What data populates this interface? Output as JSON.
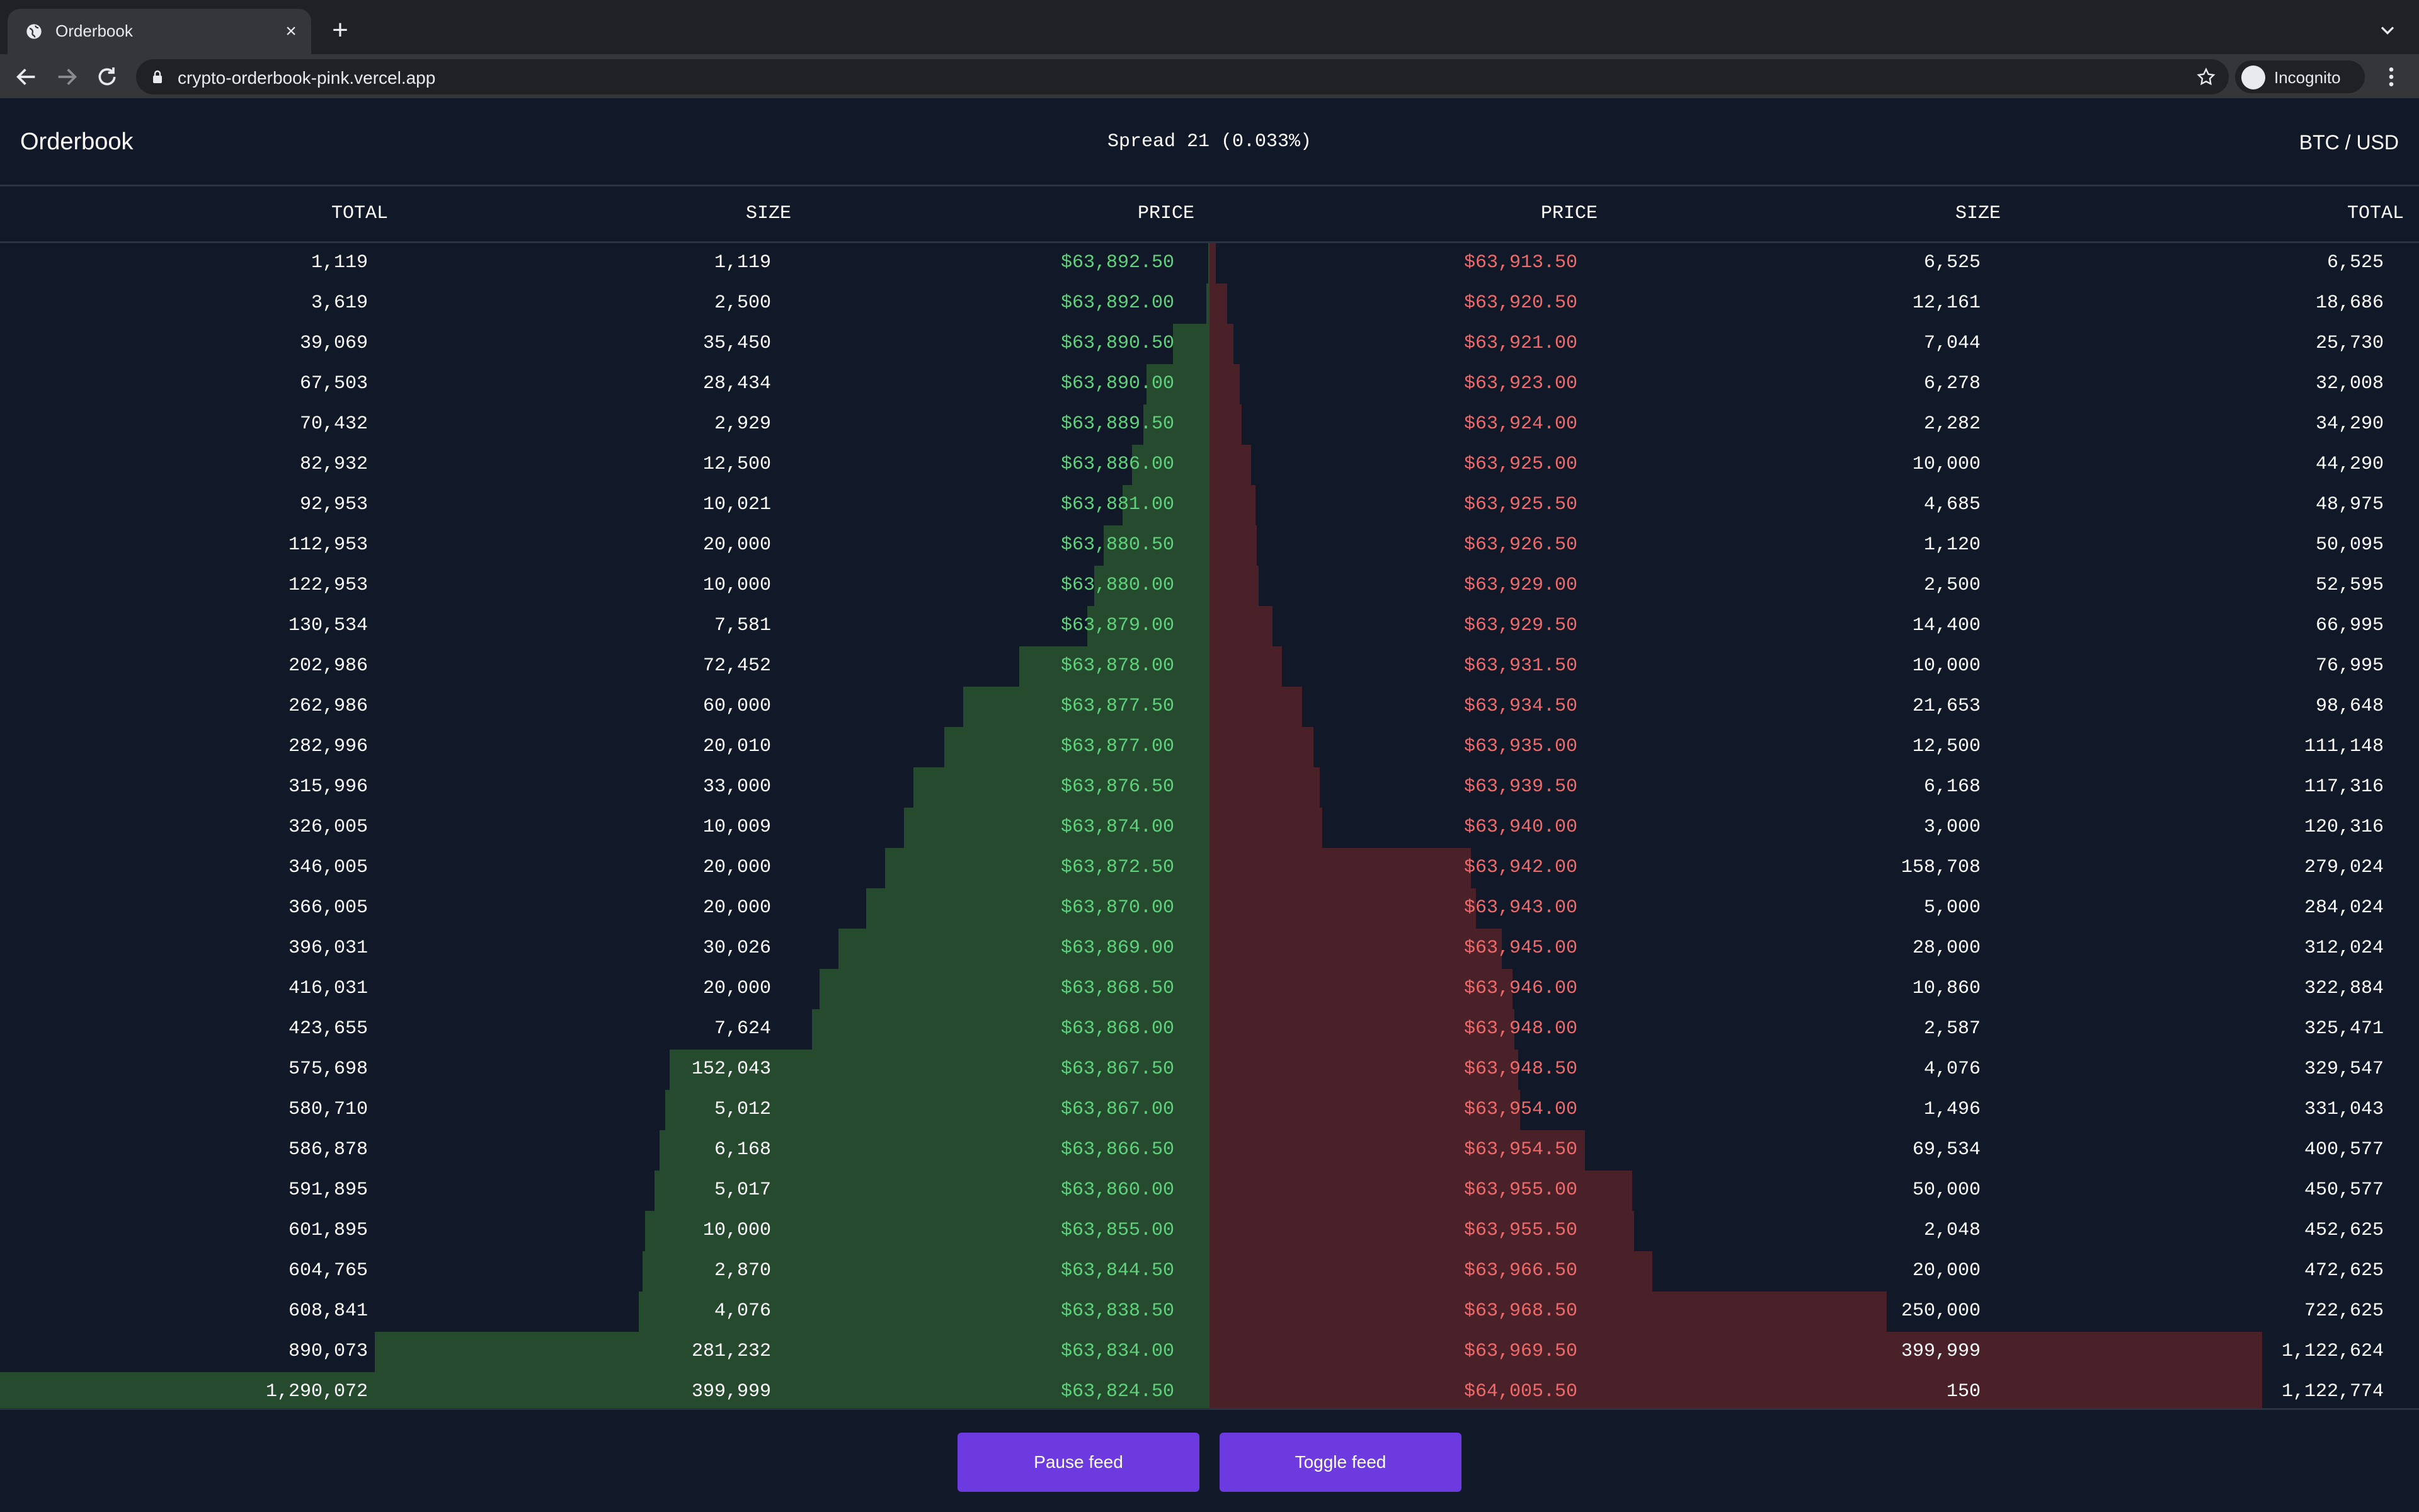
{
  "browser": {
    "tab_title": "Orderbook",
    "url": "crypto-orderbook-pink.vercel.app",
    "profile_label": "Incognito"
  },
  "header": {
    "title": "Orderbook",
    "spread": "Spread 21 (0.033%)",
    "pair": "BTC / USD"
  },
  "columns": {
    "bids": [
      "TOTAL",
      "SIZE",
      "PRICE"
    ],
    "asks": [
      "PRICE",
      "SIZE",
      "TOTAL"
    ]
  },
  "depth_max": 1290072,
  "bids": [
    {
      "total": "1,119",
      "size": "1,119",
      "price": "$63,892.50",
      "t": 1119
    },
    {
      "total": "3,619",
      "size": "2,500",
      "price": "$63,892.00",
      "t": 3619
    },
    {
      "total": "39,069",
      "size": "35,450",
      "price": "$63,890.50",
      "t": 39069
    },
    {
      "total": "67,503",
      "size": "28,434",
      "price": "$63,890.00",
      "t": 67503
    },
    {
      "total": "70,432",
      "size": "2,929",
      "price": "$63,889.50",
      "t": 70432
    },
    {
      "total": "82,932",
      "size": "12,500",
      "price": "$63,886.00",
      "t": 82932
    },
    {
      "total": "92,953",
      "size": "10,021",
      "price": "$63,881.00",
      "t": 92953
    },
    {
      "total": "112,953",
      "size": "20,000",
      "price": "$63,880.50",
      "t": 112953
    },
    {
      "total": "122,953",
      "size": "10,000",
      "price": "$63,880.00",
      "t": 122953
    },
    {
      "total": "130,534",
      "size": "7,581",
      "price": "$63,879.00",
      "t": 130534
    },
    {
      "total": "202,986",
      "size": "72,452",
      "price": "$63,878.00",
      "t": 202986
    },
    {
      "total": "262,986",
      "size": "60,000",
      "price": "$63,877.50",
      "t": 262986
    },
    {
      "total": "282,996",
      "size": "20,010",
      "price": "$63,877.00",
      "t": 282996
    },
    {
      "total": "315,996",
      "size": "33,000",
      "price": "$63,876.50",
      "t": 315996
    },
    {
      "total": "326,005",
      "size": "10,009",
      "price": "$63,874.00",
      "t": 326005
    },
    {
      "total": "346,005",
      "size": "20,000",
      "price": "$63,872.50",
      "t": 346005
    },
    {
      "total": "366,005",
      "size": "20,000",
      "price": "$63,870.00",
      "t": 366005
    },
    {
      "total": "396,031",
      "size": "30,026",
      "price": "$63,869.00",
      "t": 396031
    },
    {
      "total": "416,031",
      "size": "20,000",
      "price": "$63,868.50",
      "t": 416031
    },
    {
      "total": "423,655",
      "size": "7,624",
      "price": "$63,868.00",
      "t": 423655
    },
    {
      "total": "575,698",
      "size": "152,043",
      "price": "$63,867.50",
      "t": 575698
    },
    {
      "total": "580,710",
      "size": "5,012",
      "price": "$63,867.00",
      "t": 580710
    },
    {
      "total": "586,878",
      "size": "6,168",
      "price": "$63,866.50",
      "t": 586878
    },
    {
      "total": "591,895",
      "size": "5,017",
      "price": "$63,860.00",
      "t": 591895
    },
    {
      "total": "601,895",
      "size": "10,000",
      "price": "$63,855.00",
      "t": 601895
    },
    {
      "total": "604,765",
      "size": "2,870",
      "price": "$63,844.50",
      "t": 604765
    },
    {
      "total": "608,841",
      "size": "4,076",
      "price": "$63,838.50",
      "t": 608841
    },
    {
      "total": "890,073",
      "size": "281,232",
      "price": "$63,834.00",
      "t": 890073
    },
    {
      "total": "1,290,072",
      "size": "399,999",
      "price": "$63,824.50",
      "t": 1290072
    }
  ],
  "asks": [
    {
      "price": "$63,913.50",
      "size": "6,525",
      "total": "6,525",
      "t": 6525
    },
    {
      "price": "$63,920.50",
      "size": "12,161",
      "total": "18,686",
      "t": 18686
    },
    {
      "price": "$63,921.00",
      "size": "7,044",
      "total": "25,730",
      "t": 25730
    },
    {
      "price": "$63,923.00",
      "size": "6,278",
      "total": "32,008",
      "t": 32008
    },
    {
      "price": "$63,924.00",
      "size": "2,282",
      "total": "34,290",
      "t": 34290
    },
    {
      "price": "$63,925.00",
      "size": "10,000",
      "total": "44,290",
      "t": 44290
    },
    {
      "price": "$63,925.50",
      "size": "4,685",
      "total": "48,975",
      "t": 48975
    },
    {
      "price": "$63,926.50",
      "size": "1,120",
      "total": "50,095",
      "t": 50095
    },
    {
      "price": "$63,929.00",
      "size": "2,500",
      "total": "52,595",
      "t": 52595
    },
    {
      "price": "$63,929.50",
      "size": "14,400",
      "total": "66,995",
      "t": 66995
    },
    {
      "price": "$63,931.50",
      "size": "10,000",
      "total": "76,995",
      "t": 76995
    },
    {
      "price": "$63,934.50",
      "size": "21,653",
      "total": "98,648",
      "t": 98648
    },
    {
      "price": "$63,935.00",
      "size": "12,500",
      "total": "111,148",
      "t": 111148
    },
    {
      "price": "$63,939.50",
      "size": "6,168",
      "total": "117,316",
      "t": 117316
    },
    {
      "price": "$63,940.00",
      "size": "3,000",
      "total": "120,316",
      "t": 120316
    },
    {
      "price": "$63,942.00",
      "size": "158,708",
      "total": "279,024",
      "t": 279024
    },
    {
      "price": "$63,943.00",
      "size": "5,000",
      "total": "284,024",
      "t": 284024
    },
    {
      "price": "$63,945.00",
      "size": "28,000",
      "total": "312,024",
      "t": 312024
    },
    {
      "price": "$63,946.00",
      "size": "10,860",
      "total": "322,884",
      "t": 322884
    },
    {
      "price": "$63,948.00",
      "size": "2,587",
      "total": "325,471",
      "t": 325471
    },
    {
      "price": "$63,948.50",
      "size": "4,076",
      "total": "329,547",
      "t": 329547
    },
    {
      "price": "$63,954.00",
      "size": "1,496",
      "total": "331,043",
      "t": 331043
    },
    {
      "price": "$63,954.50",
      "size": "69,534",
      "total": "400,577",
      "t": 400577
    },
    {
      "price": "$63,955.00",
      "size": "50,000",
      "total": "450,577",
      "t": 450577
    },
    {
      "price": "$63,955.50",
      "size": "2,048",
      "total": "452,625",
      "t": 452625
    },
    {
      "price": "$63,966.50",
      "size": "20,000",
      "total": "472,625",
      "t": 472625
    },
    {
      "price": "$63,968.50",
      "size": "250,000",
      "total": "722,625",
      "t": 722625
    },
    {
      "price": "$63,969.50",
      "size": "399,999",
      "total": "1,122,624",
      "t": 1122624
    },
    {
      "price": "$64,005.50",
      "size": "150",
      "total": "1,122,774",
      "t": 1122774
    }
  ],
  "buttons": {
    "pause": "Pause feed",
    "toggle": "Toggle feed"
  },
  "colors": {
    "background": "#111827",
    "bid_price": "#5fd27c",
    "ask_price": "#f06a6a",
    "bid_depth": "#254a2e",
    "ask_depth": "#4a2029",
    "button": "#6d3ae0"
  }
}
